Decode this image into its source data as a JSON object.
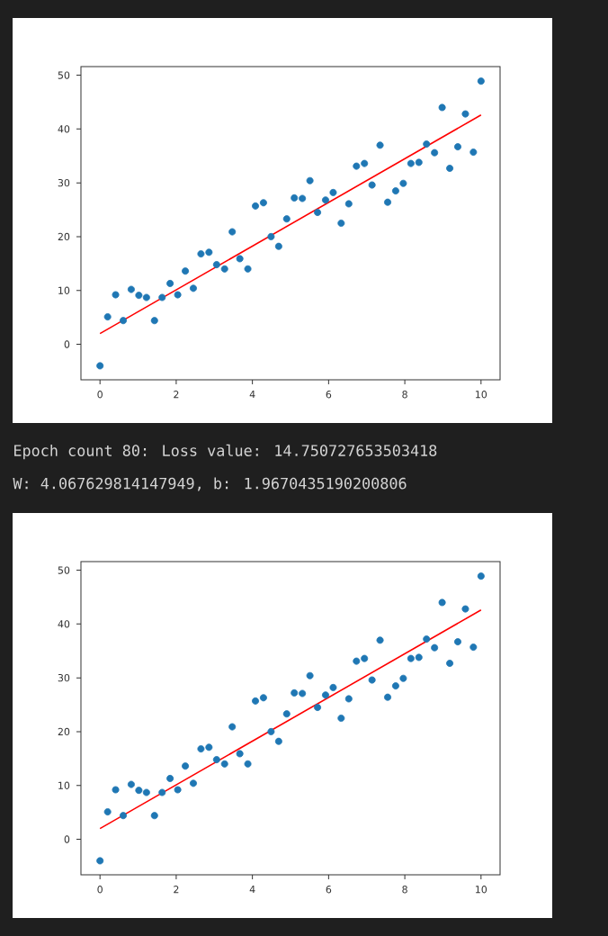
{
  "chart_data": [
    {
      "type": "scatter",
      "xlim": [
        -0.5,
        10.5
      ],
      "ylim": [
        -6.6,
        51.6
      ],
      "xticks": [
        0,
        2,
        4,
        6,
        8,
        10
      ],
      "yticks": [
        0,
        10,
        20,
        30,
        40,
        50
      ],
      "series": [
        {
          "type": "scatter",
          "marker": "circle",
          "color": "#1f77b4",
          "x": [
            0,
            0.2,
            0.41,
            0.61,
            0.82,
            1.02,
            1.22,
            1.43,
            1.63,
            1.84,
            2.04,
            2.24,
            2.45,
            2.65,
            2.86,
            3.06,
            3.27,
            3.47,
            3.67,
            3.88,
            4.08,
            4.29,
            4.49,
            4.69,
            4.9,
            5.1,
            5.31,
            5.51,
            5.71,
            5.92,
            6.12,
            6.33,
            6.53,
            6.73,
            6.94,
            7.14,
            7.35,
            7.55,
            7.76,
            7.96,
            8.16,
            8.37,
            8.57,
            8.78,
            8.98,
            9.18,
            9.39,
            9.59,
            9.8,
            10
          ],
          "values": [
            -4.0,
            5.1,
            9.2,
            4.4,
            10.2,
            9.1,
            8.7,
            4.4,
            8.7,
            11.3,
            9.2,
            13.6,
            10.4,
            16.8,
            17.1,
            14.8,
            14.0,
            20.9,
            15.9,
            14.0,
            25.7,
            26.3,
            20.0,
            18.2,
            23.3,
            27.2,
            27.1,
            30.4,
            24.5,
            26.8,
            28.2,
            22.5,
            26.1,
            33.1,
            33.6,
            29.6,
            37.0,
            26.4,
            28.5,
            29.9,
            33.6,
            33.8,
            37.2,
            35.6,
            44.0,
            32.7,
            36.7,
            42.8,
            35.7,
            48.9
          ]
        },
        {
          "type": "line",
          "color": "#ff0000",
          "x": [
            0,
            10
          ],
          "values": [
            2.0,
            42.6
          ]
        }
      ]
    },
    {
      "type": "other",
      "annotations": [
        "Epoch count 80: Loss value: 14.750727653503418",
        "W: 4.067629814147949, b: 1.9670435190200806"
      ]
    },
    {
      "type": "scatter",
      "xlim": [
        -0.5,
        10.5
      ],
      "ylim": [
        -6.6,
        51.6
      ],
      "xticks": [
        0,
        2,
        4,
        6,
        8,
        10
      ],
      "yticks": [
        0,
        10,
        20,
        30,
        40,
        50
      ],
      "series": [
        {
          "type": "scatter",
          "marker": "circle",
          "color": "#1f77b4",
          "x": [
            0,
            0.2,
            0.41,
            0.61,
            0.82,
            1.02,
            1.22,
            1.43,
            1.63,
            1.84,
            2.04,
            2.24,
            2.45,
            2.65,
            2.86,
            3.06,
            3.27,
            3.47,
            3.67,
            3.88,
            4.08,
            4.29,
            4.49,
            4.69,
            4.9,
            5.1,
            5.31,
            5.51,
            5.71,
            5.92,
            6.12,
            6.33,
            6.53,
            6.73,
            6.94,
            7.14,
            7.35,
            7.55,
            7.76,
            7.96,
            8.16,
            8.37,
            8.57,
            8.78,
            8.98,
            9.18,
            9.39,
            9.59,
            9.8,
            10
          ],
          "values": [
            -4.0,
            5.1,
            9.2,
            4.4,
            10.2,
            9.1,
            8.7,
            4.4,
            8.7,
            11.3,
            9.2,
            13.6,
            10.4,
            16.8,
            17.1,
            14.8,
            14.0,
            20.9,
            15.9,
            14.0,
            25.7,
            26.3,
            20.0,
            18.2,
            23.3,
            27.2,
            27.1,
            30.4,
            24.5,
            26.8,
            28.2,
            22.5,
            26.1,
            33.1,
            33.6,
            29.6,
            37.0,
            26.4,
            28.5,
            29.9,
            33.6,
            33.8,
            37.2,
            35.6,
            44.0,
            32.7,
            36.7,
            42.8,
            35.7,
            48.9
          ]
        },
        {
          "type": "line",
          "color": "#ff0000",
          "x": [
            0,
            10
          ],
          "values": [
            2.0,
            42.6
          ]
        }
      ]
    }
  ]
}
